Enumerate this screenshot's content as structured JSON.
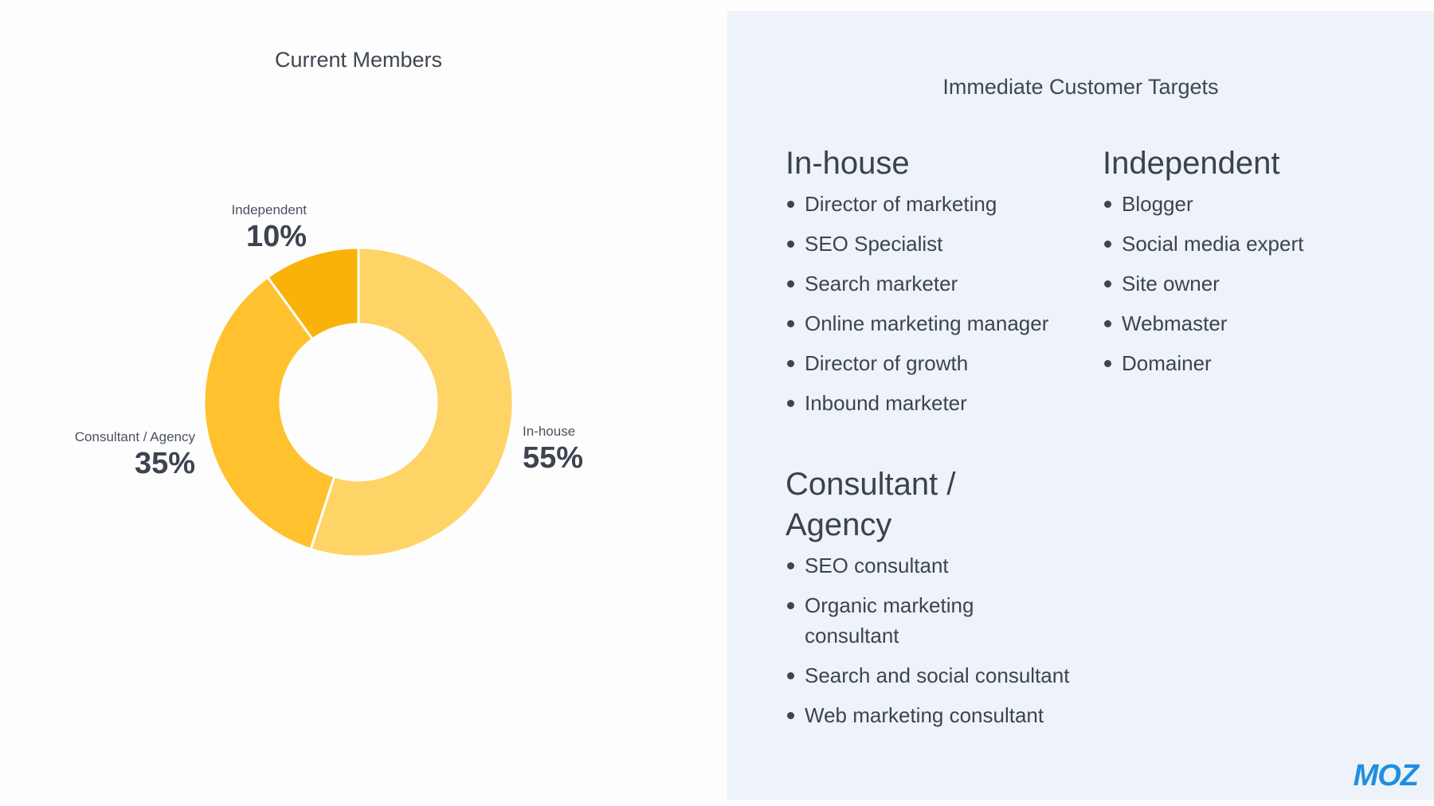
{
  "left": {
    "title": "Current Members"
  },
  "chart_data": {
    "type": "pie",
    "title": "Current Members",
    "style": "donut",
    "slices": [
      {
        "label": "In-house",
        "value": 55,
        "display": "55%",
        "color": "#ffd466"
      },
      {
        "label": "Consultant / Agency",
        "value": 35,
        "display": "35%",
        "color": "#ffc12e"
      },
      {
        "label": "Independent",
        "value": 10,
        "display": "10%",
        "color": "#f9b208"
      }
    ],
    "start_angle_deg": 0,
    "direction": "clockwise",
    "separator_color": "#fdfdfd",
    "legend": "none"
  },
  "right": {
    "title": "Immediate Customer Targets",
    "groups": [
      {
        "heading": "In-house",
        "items": [
          "Director of marketing",
          "SEO Specialist",
          "Search marketer",
          "Online marketing manager",
          "Director of growth",
          "Inbound marketer"
        ]
      },
      {
        "heading": "Independent",
        "items": [
          "Blogger",
          "Social media expert",
          "Site owner",
          "Webmaster",
          "Domainer"
        ]
      },
      {
        "heading": "Consultant / Agency",
        "items": [
          "SEO consultant",
          "Organic marketing consultant",
          "Search and social consultant",
          "Web marketing consultant"
        ]
      }
    ]
  },
  "logo": {
    "text": "MOZ",
    "color": "#1f8ee0"
  }
}
